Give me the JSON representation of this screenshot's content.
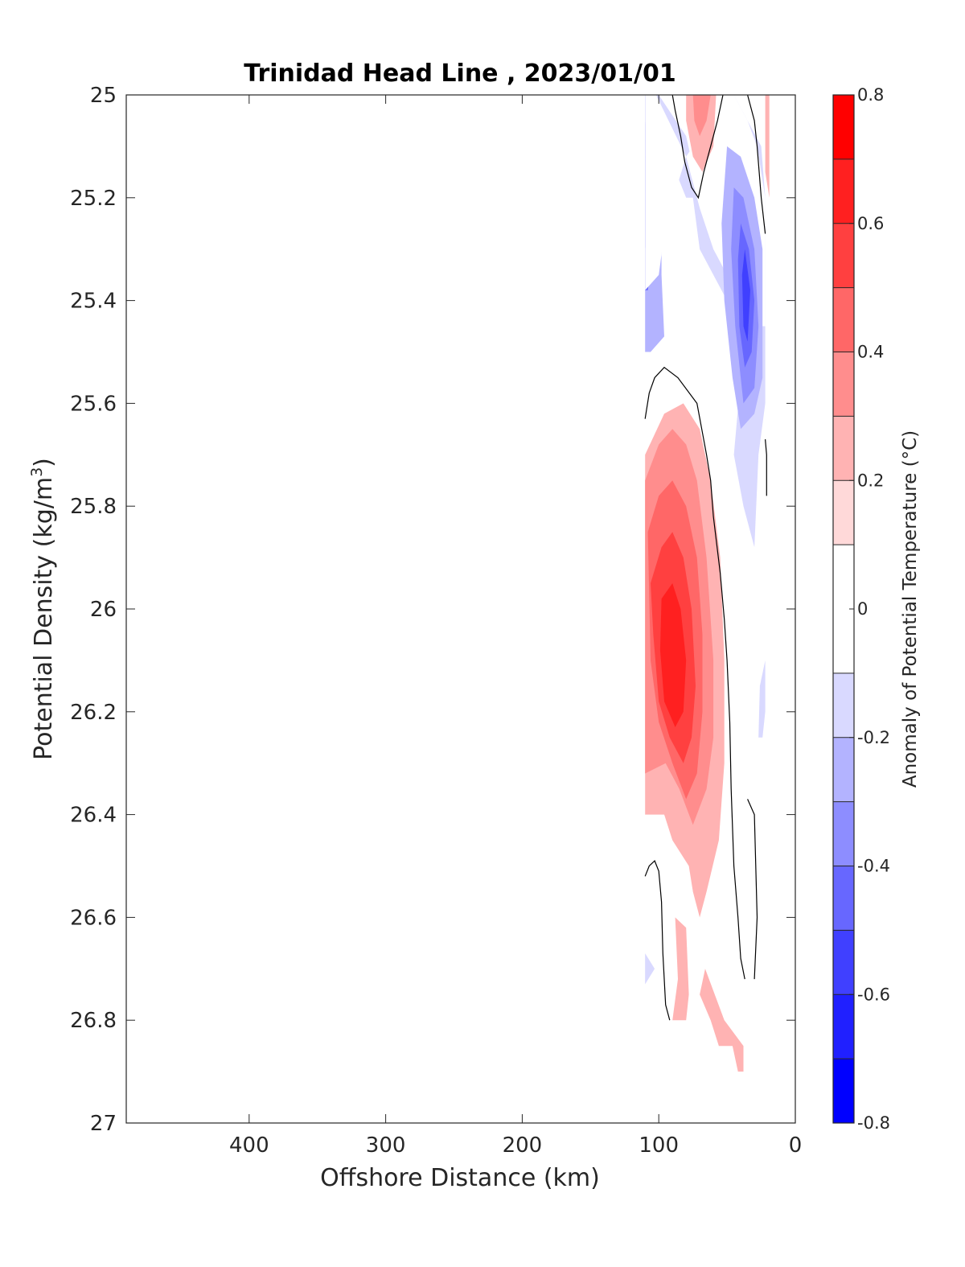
{
  "chart_data": {
    "type": "contourf",
    "title": "Trinidad Head Line , 2023/01/01",
    "xlabel": "Offshore Distance (km)",
    "ylabel": "Potential Density (kg/m³)",
    "ylabel_base": "Potential Density (kg/m",
    "ylabel_sup": "3",
    "ylabel_close": ")",
    "xlim": [
      490,
      0
    ],
    "x_reversed": true,
    "ylim": [
      25,
      27
    ],
    "y_reversed": true,
    "x_ticks": [
      400,
      300,
      200,
      100,
      0
    ],
    "x_tick_labels": [
      "400",
      "300",
      "200",
      "100",
      "0"
    ],
    "y_ticks": [
      25,
      25.2,
      25.4,
      25.6,
      25.8,
      26,
      26.2,
      26.4,
      26.6,
      26.8,
      27
    ],
    "y_tick_labels": [
      "25",
      "25.2",
      "25.4",
      "25.6",
      "25.8",
      "26",
      "26.2",
      "26.4",
      "26.6",
      "26.8",
      "27"
    ],
    "grid": false,
    "colorbar": {
      "label": "Anomaly of Potential Temperature (°C)",
      "range": [
        -0.8,
        0.8
      ],
      "ticks": [
        0.8,
        0.6,
        0.4,
        0.2,
        0,
        -0.2,
        -0.4,
        -0.6,
        -0.8
      ],
      "tick_labels": [
        "0.8",
        "0.6",
        "0.4",
        "0.2",
        "0",
        "-0.2",
        "-0.4",
        "-0.6",
        "-0.8"
      ],
      "levels": [
        -0.8,
        -0.7,
        -0.6,
        -0.5,
        -0.4,
        -0.3,
        -0.2,
        -0.1,
        0.1,
        0.2,
        0.3,
        0.4,
        0.5,
        0.6,
        0.7,
        0.8
      ],
      "colors": [
        "#0000ff",
        "#2020ff",
        "#4040ff",
        "#6767ff",
        "#8d8dff",
        "#b3b3ff",
        "#d9d9ff",
        "#ffffff",
        "#ffd9d9",
        "#ffb3b3",
        "#ff8d8d",
        "#ff6767",
        "#ff4040",
        "#ff2020",
        "#ff0000"
      ]
    },
    "zero_contour_color": "#000000",
    "regions": [
      {
        "level": -0.3,
        "pts": [
          [
            110,
            25.0
          ],
          [
            104,
            25.0
          ],
          [
            100,
            25.05
          ],
          [
            98,
            25.2
          ],
          [
            98,
            25.35
          ],
          [
            96,
            25.47
          ],
          [
            106,
            25.5
          ],
          [
            110,
            25.5
          ]
        ]
      },
      {
        "level": -0.5,
        "pts": [
          [
            110,
            25.0
          ],
          [
            106,
            25.02
          ],
          [
            104,
            25.15
          ],
          [
            104,
            25.3
          ],
          [
            108,
            25.38
          ],
          [
            110,
            25.38
          ]
        ]
      },
      {
        "level": -0.6,
        "pts": [
          [
            110,
            25.05
          ],
          [
            108,
            25.15
          ],
          [
            108,
            25.25
          ],
          [
            110,
            25.3
          ]
        ]
      },
      {
        "level": -0.2,
        "pts": [
          [
            110,
            25.0
          ],
          [
            102,
            25.0
          ],
          [
            92,
            25.12
          ],
          [
            80,
            25.2
          ],
          [
            75,
            25.2
          ],
          [
            70,
            25.3
          ],
          [
            50,
            25.4
          ],
          [
            40,
            25.55
          ],
          [
            45,
            25.7
          ],
          [
            38,
            25.8
          ],
          [
            30,
            25.88
          ],
          [
            27,
            25.7
          ],
          [
            22,
            25.6
          ],
          [
            22,
            25.2
          ],
          [
            25,
            25.1
          ],
          [
            35,
            25.05
          ],
          [
            45,
            25.0
          ],
          [
            52,
            25.05
          ],
          [
            68,
            25.12
          ],
          [
            75,
            25.14
          ],
          [
            80,
            25.08
          ],
          [
            100,
            25.0
          ],
          [
            110,
            25.0
          ]
        ]
      },
      {
        "level": -0.1,
        "pts": [
          [
            110,
            25.0
          ],
          [
            102,
            25.0
          ],
          [
            80,
            25.12
          ],
          [
            70,
            25.22
          ],
          [
            60,
            25.3
          ],
          [
            50,
            25.35
          ],
          [
            40,
            25.45
          ],
          [
            22,
            25.45
          ],
          [
            22,
            25.2
          ],
          [
            28,
            25.1
          ],
          [
            35,
            25.05
          ],
          [
            45,
            25.0
          ],
          [
            60,
            25.0
          ],
          [
            75,
            25.1
          ],
          [
            80,
            25.12
          ],
          [
            95,
            25.25
          ],
          [
            100,
            25.35
          ],
          [
            110,
            25.38
          ]
        ]
      },
      {
        "level": -0.3,
        "pts": [
          [
            50,
            25.1
          ],
          [
            40,
            25.12
          ],
          [
            30,
            25.2
          ],
          [
            24,
            25.3
          ],
          [
            24,
            25.55
          ],
          [
            30,
            25.62
          ],
          [
            40,
            25.65
          ],
          [
            46,
            25.55
          ],
          [
            52,
            25.4
          ],
          [
            54,
            25.25
          ]
        ]
      },
      {
        "level": -0.4,
        "pts": [
          [
            45,
            25.18
          ],
          [
            38,
            25.2
          ],
          [
            30,
            25.3
          ],
          [
            27,
            25.45
          ],
          [
            30,
            25.57
          ],
          [
            38,
            25.6
          ],
          [
            44,
            25.45
          ],
          [
            47,
            25.3
          ]
        ]
      },
      {
        "level": -0.5,
        "pts": [
          [
            40,
            25.25
          ],
          [
            34,
            25.3
          ],
          [
            30,
            25.4
          ],
          [
            32,
            25.5
          ],
          [
            37,
            25.53
          ],
          [
            41,
            25.45
          ],
          [
            42,
            25.32
          ]
        ]
      },
      {
        "level": -0.6,
        "pts": [
          [
            37,
            25.3
          ],
          [
            33,
            25.38
          ],
          [
            35,
            25.48
          ],
          [
            38,
            25.45
          ],
          [
            39,
            25.35
          ]
        ]
      },
      {
        "level": 0.2,
        "pts": [
          [
            80,
            25.0
          ],
          [
            58,
            25.0
          ],
          [
            60,
            25.1
          ],
          [
            68,
            25.15
          ],
          [
            75,
            25.12
          ],
          [
            80,
            25.05
          ]
        ]
      },
      {
        "level": 0.3,
        "pts": [
          [
            75,
            25.0
          ],
          [
            62,
            25.0
          ],
          [
            65,
            25.05
          ],
          [
            70,
            25.08
          ],
          [
            74,
            25.05
          ]
        ]
      },
      {
        "level": 0.2,
        "pts": [
          [
            22,
            25.0
          ],
          [
            19,
            25.0
          ],
          [
            19,
            25.2
          ],
          [
            22,
            25.15
          ]
        ]
      },
      {
        "level": 0.2,
        "pts": [
          [
            110,
            25.7
          ],
          [
            96,
            25.62
          ],
          [
            82,
            25.6
          ],
          [
            70,
            25.65
          ],
          [
            62,
            25.75
          ],
          [
            55,
            25.9
          ],
          [
            52,
            26.1
          ],
          [
            52,
            26.3
          ],
          [
            56,
            26.45
          ],
          [
            65,
            26.55
          ],
          [
            70,
            26.6
          ],
          [
            75,
            26.55
          ],
          [
            78,
            26.5
          ],
          [
            90,
            26.45
          ],
          [
            96,
            26.4
          ],
          [
            110,
            26.4
          ]
        ]
      },
      {
        "level": 0.3,
        "pts": [
          [
            110,
            25.75
          ],
          [
            100,
            25.68
          ],
          [
            90,
            25.65
          ],
          [
            80,
            25.68
          ],
          [
            72,
            25.75
          ],
          [
            65,
            25.9
          ],
          [
            60,
            26.1
          ],
          [
            60,
            26.25
          ],
          [
            65,
            26.35
          ],
          [
            75,
            26.42
          ],
          [
            85,
            26.35
          ],
          [
            95,
            26.3
          ],
          [
            110,
            26.32
          ]
        ]
      },
      {
        "level": 0.4,
        "pts": [
          [
            108,
            25.85
          ],
          [
            100,
            25.78
          ],
          [
            90,
            25.75
          ],
          [
            80,
            25.8
          ],
          [
            72,
            25.9
          ],
          [
            68,
            26.05
          ],
          [
            68,
            26.2
          ],
          [
            72,
            26.32
          ],
          [
            80,
            26.37
          ],
          [
            90,
            26.3
          ],
          [
            100,
            26.22
          ],
          [
            106,
            26.1
          ]
        ]
      },
      {
        "level": 0.5,
        "pts": [
          [
            106,
            25.95
          ],
          [
            98,
            25.88
          ],
          [
            90,
            25.85
          ],
          [
            82,
            25.9
          ],
          [
            76,
            26.0
          ],
          [
            73,
            26.15
          ],
          [
            76,
            26.25
          ],
          [
            82,
            26.3
          ],
          [
            92,
            26.25
          ],
          [
            100,
            26.18
          ],
          [
            104,
            26.05
          ]
        ]
      },
      {
        "level": 0.6,
        "pts": [
          [
            98,
            25.98
          ],
          [
            90,
            25.95
          ],
          [
            84,
            26.0
          ],
          [
            80,
            26.1
          ],
          [
            82,
            26.2
          ],
          [
            88,
            26.23
          ],
          [
            96,
            26.18
          ],
          [
            99,
            26.08
          ]
        ]
      },
      {
        "level": 0.2,
        "pts": [
          [
            88,
            26.6
          ],
          [
            80,
            26.62
          ],
          [
            78,
            26.75
          ],
          [
            80,
            26.8
          ],
          [
            90,
            26.8
          ],
          [
            86,
            26.72
          ]
        ]
      },
      {
        "level": 0.2,
        "pts": [
          [
            70,
            26.75
          ],
          [
            62,
            26.8
          ],
          [
            56,
            26.85
          ],
          [
            46,
            26.85
          ],
          [
            42,
            26.9
          ],
          [
            38,
            26.9
          ],
          [
            38,
            26.85
          ],
          [
            52,
            26.8
          ],
          [
            66,
            26.7
          ]
        ]
      },
      {
        "level": -0.2,
        "pts": [
          [
            110,
            26.67
          ],
          [
            103,
            26.7
          ],
          [
            110,
            26.73
          ]
        ]
      },
      {
        "level": -0.2,
        "pts": [
          [
            22,
            26.1
          ],
          [
            26,
            26.15
          ],
          [
            27,
            26.25
          ],
          [
            24,
            26.25
          ],
          [
            22,
            26.2
          ]
        ]
      }
    ],
    "zero_contours": [
      [
        [
          90,
          25.0
        ],
        [
          88,
          25.03
        ],
        [
          84,
          25.08
        ],
        [
          81,
          25.13
        ],
        [
          76,
          25.18
        ],
        [
          71,
          25.2
        ],
        [
          67,
          25.15
        ],
        [
          57,
          25.05
        ],
        [
          53,
          25.0
        ]
      ],
      [
        [
          35,
          25.0
        ],
        [
          30,
          25.05
        ],
        [
          28,
          25.1
        ],
        [
          25,
          25.2
        ],
        [
          22,
          25.27
        ]
      ],
      [
        [
          110,
          25.63
        ],
        [
          107,
          25.58
        ],
        [
          103,
          25.55
        ],
        [
          96,
          25.53
        ],
        [
          86,
          25.55
        ],
        [
          72,
          25.6
        ],
        [
          65,
          25.7
        ],
        [
          62,
          25.75
        ],
        [
          60,
          25.82
        ],
        [
          55,
          25.93
        ],
        [
          52,
          26.02
        ],
        [
          50,
          26.1
        ],
        [
          48,
          26.22
        ],
        [
          47,
          26.35
        ],
        [
          45,
          26.5
        ],
        [
          42,
          26.6
        ],
        [
          40,
          26.68
        ],
        [
          37,
          26.72
        ]
      ],
      [
        [
          110,
          26.52
        ],
        [
          107,
          26.5
        ],
        [
          103,
          26.49
        ],
        [
          100,
          26.51
        ],
        [
          98,
          26.57
        ],
        [
          97,
          26.67
        ],
        [
          95,
          26.77
        ],
        [
          92,
          26.8
        ]
      ],
      [
        [
          35,
          26.37
        ],
        [
          30,
          26.4
        ],
        [
          29,
          26.5
        ],
        [
          28,
          26.6
        ],
        [
          30,
          26.72
        ]
      ],
      [
        [
          22,
          25.67
        ],
        [
          21,
          25.7
        ],
        [
          21,
          25.78
        ]
      ]
    ]
  }
}
